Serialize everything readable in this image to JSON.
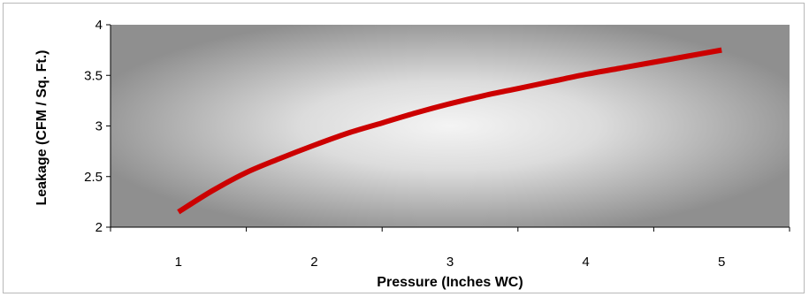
{
  "chart_data": {
    "type": "line",
    "title": "",
    "xlabel": "Pressure (Inches WC)",
    "ylabel": "Leakage (CFM / Sq. Ft.)",
    "xlim": [
      0.5,
      5.5
    ],
    "ylim": [
      2,
      4
    ],
    "xticks": [
      1,
      2,
      3,
      4,
      5
    ],
    "yticks": [
      2,
      2.5,
      3,
      3.5,
      4
    ],
    "grid": false,
    "legend": "none",
    "series": [
      {
        "color": "#cc0000",
        "x": [
          1,
          1.25,
          1.5,
          1.75,
          2,
          2.25,
          2.5,
          2.75,
          3,
          3.25,
          3.5,
          3.75,
          4,
          4.25,
          4.5,
          4.75,
          5
        ],
        "y": [
          2.15,
          2.36,
          2.54,
          2.68,
          2.81,
          2.93,
          3.03,
          3.13,
          3.22,
          3.3,
          3.37,
          3.44,
          3.51,
          3.57,
          3.63,
          3.69,
          3.75
        ]
      }
    ],
    "background_gradient": {
      "edge_color": "#8f8f8f",
      "center_color": "#f4f4f4"
    }
  }
}
